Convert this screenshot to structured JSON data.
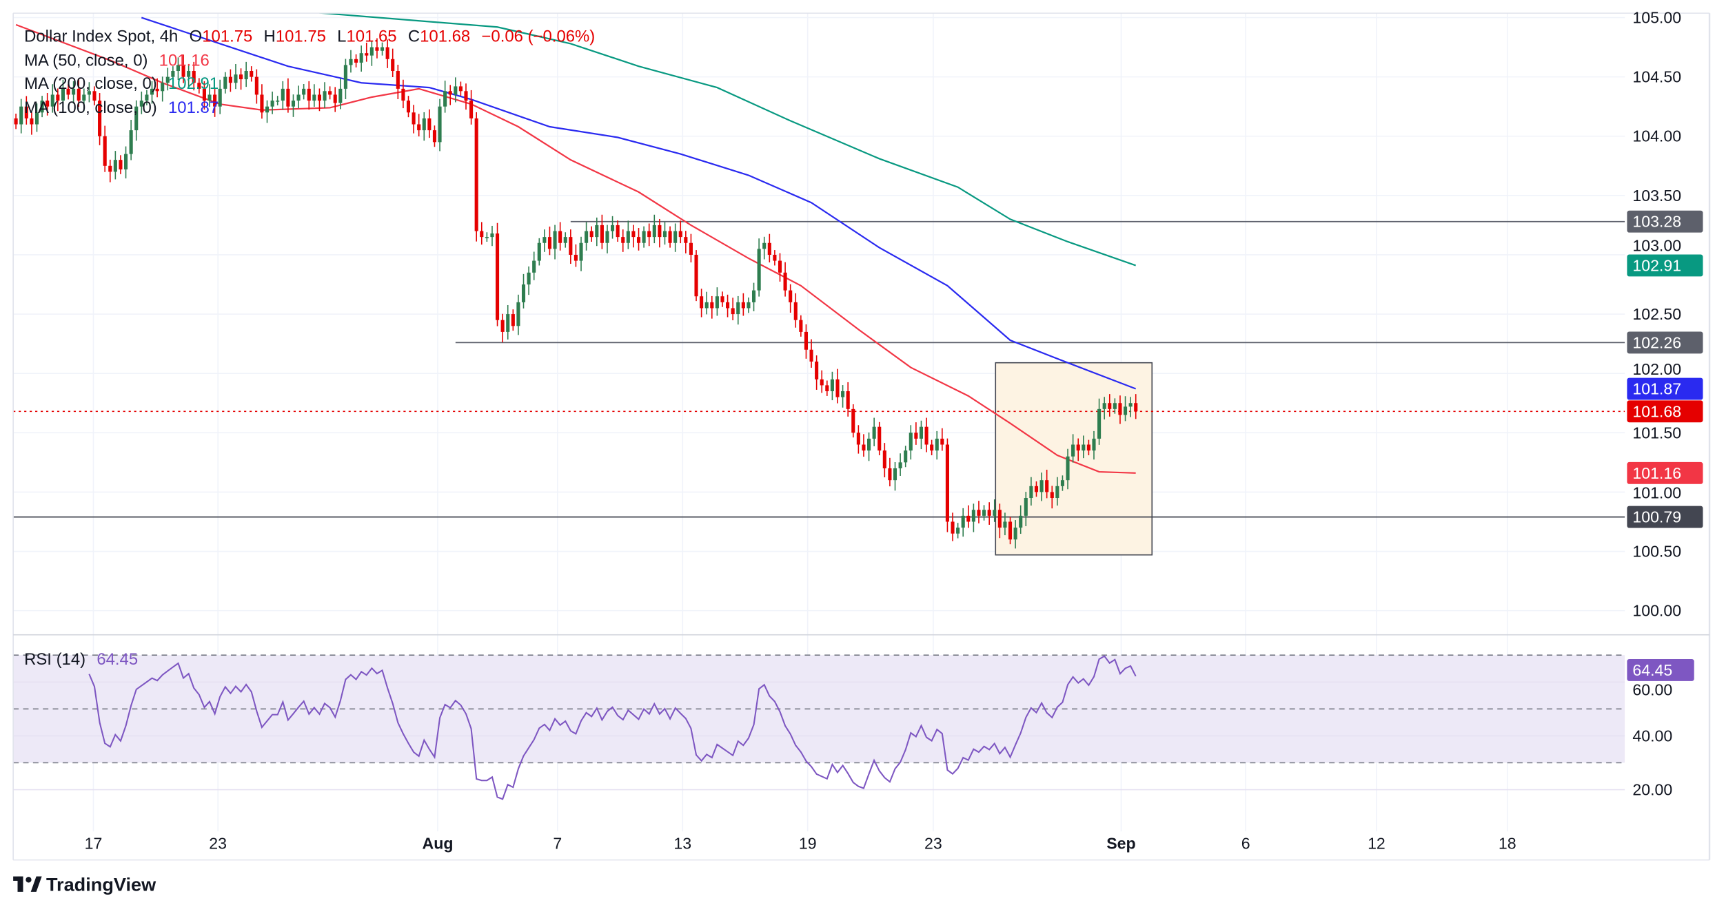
{
  "header": {
    "symbol": "Dollar Index Spot, 4h",
    "o_label": "O",
    "o": "101.75",
    "h_label": "H",
    "h": "101.75",
    "l_label": "L",
    "l": "101.65",
    "c_label": "C",
    "c": "101.68",
    "change": "−0.06 (−0.06%)"
  },
  "indicators": [
    {
      "label": "MA (50, close, 0)",
      "value": "101.16",
      "color": "#f23645"
    },
    {
      "label": "MA (200, close, 0)",
      "value": "102.91",
      "color": "#089981"
    },
    {
      "label": "MA (100, close, 0)",
      "value": "101.87",
      "color": "#2a2af0"
    }
  ],
  "rsi": {
    "label": "RSI (14)",
    "value": "64.45",
    "color": "#7e57c2"
  },
  "branding": {
    "logo_text": "TradingView"
  },
  "colors": {
    "up": "#2e7d4f",
    "down": "#e50000",
    "level": "#434651",
    "box_fill": "#fdf3e3",
    "rsi_band": "#ede9f7"
  },
  "chart_data": {
    "type": "candlestick",
    "title": "Dollar Index Spot, 4h",
    "timeframe": "4h",
    "ylim": [
      99.8,
      105.05
    ],
    "y_ticks": [
      "100.00",
      "100.50",
      "101.00",
      "101.50",
      "102.00",
      "102.50",
      "103.00",
      "103.50",
      "104.00",
      "104.50",
      "105.00"
    ],
    "x_ticks": [
      {
        "label": "17",
        "bar": 14.8
      },
      {
        "label": "23",
        "bar": 38.6
      },
      {
        "label": "Aug",
        "bar": 80.6
      },
      {
        "label": "7",
        "bar": 103.5
      },
      {
        "label": "13",
        "bar": 127.4
      },
      {
        "label": "19",
        "bar": 151.3
      },
      {
        "label": "23",
        "bar": 175.3
      },
      {
        "label": "Sep",
        "bar": 211.2
      },
      {
        "label": "6",
        "bar": 235
      },
      {
        "label": "12",
        "bar": 260
      },
      {
        "label": "18",
        "bar": 285
      }
    ],
    "close": [
      104.1,
      104.25,
      104.15,
      104.1,
      104.2,
      104.3,
      104.25,
      104.35,
      104.3,
      104.4,
      104.35,
      104.4,
      104.3,
      104.35,
      104.38,
      104.3,
      104.0,
      103.75,
      103.7,
      103.8,
      103.72,
      103.85,
      104.05,
      104.25,
      104.3,
      104.35,
      104.4,
      104.38,
      104.45,
      104.5,
      104.55,
      104.6,
      104.5,
      104.55,
      104.45,
      104.4,
      104.3,
      104.35,
      104.25,
      104.4,
      104.5,
      104.45,
      104.52,
      104.48,
      104.55,
      104.5,
      104.35,
      104.2,
      104.25,
      104.3,
      104.3,
      104.4,
      104.25,
      104.3,
      104.35,
      104.4,
      104.3,
      104.35,
      104.3,
      104.38,
      104.35,
      104.28,
      104.4,
      104.6,
      104.65,
      104.62,
      104.7,
      104.68,
      104.75,
      104.72,
      104.75,
      104.65,
      104.55,
      104.4,
      104.3,
      104.2,
      104.1,
      104.05,
      104.15,
      104.05,
      103.95,
      104.25,
      104.38,
      104.35,
      104.42,
      104.38,
      104.3,
      104.15,
      103.2,
      103.15,
      103.15,
      103.18,
      102.45,
      102.35,
      102.5,
      102.4,
      102.6,
      102.75,
      102.85,
      102.95,
      103.1,
      103.15,
      103.05,
      103.2,
      103.1,
      103.15,
      103.0,
      102.95,
      103.1,
      103.2,
      103.15,
      103.25,
      103.1,
      103.2,
      103.25,
      103.15,
      103.1,
      103.2,
      103.15,
      103.1,
      103.2,
      103.15,
      103.25,
      103.15,
      103.2,
      103.1,
      103.2,
      103.15,
      103.1,
      103.0,
      102.65,
      102.55,
      102.6,
      102.55,
      102.65,
      102.6,
      102.55,
      102.5,
      102.6,
      102.55,
      102.6,
      102.7,
      103.05,
      103.1,
      103.0,
      102.95,
      102.85,
      102.7,
      102.6,
      102.45,
      102.35,
      102.2,
      102.1,
      101.95,
      101.9,
      101.85,
      101.95,
      101.8,
      101.85,
      101.7,
      101.5,
      101.4,
      101.35,
      101.45,
      101.55,
      101.35,
      101.2,
      101.1,
      101.2,
      101.25,
      101.35,
      101.5,
      101.45,
      101.55,
      101.4,
      101.35,
      101.45,
      101.4,
      100.75,
      100.65,
      100.7,
      100.8,
      100.75,
      100.85,
      100.8,
      100.85,
      100.8,
      100.85,
      100.7,
      100.75,
      100.6,
      100.7,
      100.8,
      100.95,
      101.05,
      101.0,
      101.1,
      101.0,
      100.95,
      101.05,
      101.1,
      101.3,
      101.4,
      101.35,
      101.4,
      101.35,
      101.45,
      101.7,
      101.75,
      101.7,
      101.75,
      101.65,
      101.72,
      101.75,
      101.68
    ],
    "ma50": [
      [
        0,
        104.94
      ],
      [
        18,
        104.64
      ],
      [
        28,
        104.45
      ],
      [
        39,
        104.27
      ],
      [
        47,
        104.22
      ],
      [
        60,
        104.24
      ],
      [
        68,
        104.33
      ],
      [
        77,
        104.4
      ],
      [
        87,
        104.27
      ],
      [
        96,
        104.08
      ],
      [
        106,
        103.8
      ],
      [
        119,
        103.53
      ],
      [
        129,
        103.25
      ],
      [
        140,
        102.97
      ],
      [
        150,
        102.74
      ],
      [
        161,
        102.37
      ],
      [
        171,
        102.05
      ],
      [
        182,
        101.81
      ],
      [
        190,
        101.58
      ],
      [
        199,
        101.31
      ],
      [
        207,
        101.17
      ],
      [
        214,
        101.16
      ]
    ],
    "ma100": [
      [
        24,
        105.0
      ],
      [
        39,
        104.78
      ],
      [
        52,
        104.59
      ],
      [
        66,
        104.45
      ],
      [
        79,
        104.41
      ],
      [
        87,
        104.31
      ],
      [
        102,
        104.08
      ],
      [
        115,
        103.99
      ],
      [
        127,
        103.85
      ],
      [
        140,
        103.67
      ],
      [
        152,
        103.44
      ],
      [
        165,
        103.06
      ],
      [
        178,
        102.74
      ],
      [
        190,
        102.28
      ],
      [
        201,
        102.09
      ],
      [
        214,
        101.87
      ]
    ],
    "ma200": [
      [
        58,
        105.04
      ],
      [
        75,
        104.98
      ],
      [
        92,
        104.92
      ],
      [
        106,
        104.78
      ],
      [
        119,
        104.59
      ],
      [
        134,
        104.41
      ],
      [
        148,
        104.13
      ],
      [
        165,
        103.81
      ],
      [
        180,
        103.57
      ],
      [
        190,
        103.3
      ],
      [
        201,
        103.11
      ],
      [
        214,
        102.91
      ]
    ],
    "levels": [
      {
        "price": 103.28,
        "from_bar": 106,
        "label": "103.28",
        "color": "#5d606b"
      },
      {
        "price": 102.26,
        "from_bar": 84,
        "label": "102.26",
        "color": "#5d606b"
      },
      {
        "price": 100.79,
        "from_bar": -1,
        "label": "100.79",
        "color": "#434651"
      }
    ],
    "last_price": {
      "price": 101.68,
      "label": "101.68",
      "color": "#e50000"
    },
    "ma_badges": [
      {
        "price": 102.91,
        "label": "102.91",
        "color": "#089981"
      },
      {
        "price": 101.87,
        "label": "101.87",
        "color": "#2a2af0"
      },
      {
        "price": 101.16,
        "label": "101.16",
        "color": "#f23645"
      }
    ],
    "highlight_box": {
      "bar_from": 187.2,
      "bar_to": 217.1,
      "price_high": 102.09,
      "price_low": 100.47
    },
    "rsi_period": 14,
    "rsi_ticks": [
      "20.00",
      "40.00",
      "60.00"
    ],
    "rsi_bands": [
      30,
      50,
      70
    ],
    "rsi_last": "64.45"
  }
}
